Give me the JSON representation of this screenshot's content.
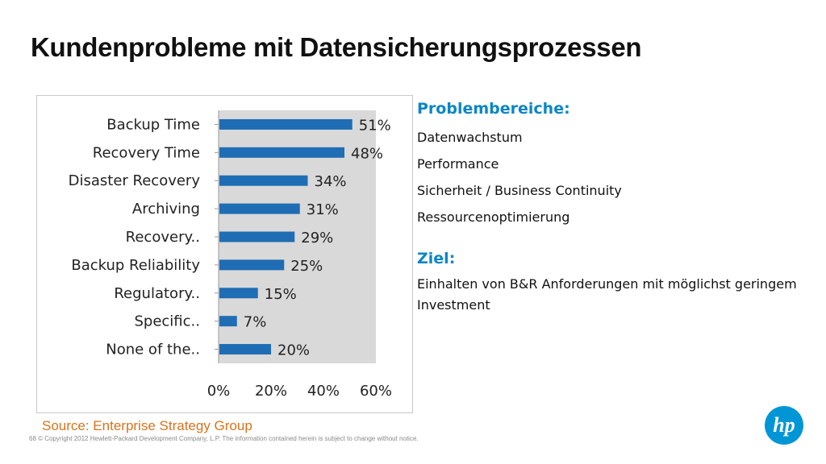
{
  "slide": {
    "title": "Kundenprobleme mit  Datensicherungsprozessen",
    "problem_heading": "Problembereiche:",
    "problems": [
      "Datenwachstum",
      "Performance",
      "Sicherheit / Business Continuity",
      "Ressourcenoptimierung"
    ],
    "goal_heading": "Ziel:",
    "goal_text": "Einhalten von B&R Anforderungen mit möglichst geringem Investment",
    "source": "Source:  Enterprise Strategy Group",
    "footer": "68    © Copyright 2012 Hewlett-Packard Development Company, L.P. The information contained herein is subject to change without notice.",
    "logo_text": "hp"
  },
  "colors": {
    "bar": "#1f6db4",
    "accent": "#0a86c7",
    "source": "#d9731a",
    "logo": "#0096d6",
    "plot_bg": "#d9d9d9"
  },
  "chart_data": {
    "type": "bar",
    "orientation": "horizontal",
    "categories": [
      "Backup Time",
      "Recovery Time",
      "Disaster Recovery",
      "Archiving",
      "Recovery..",
      "Backup Reliability",
      "Regulatory..",
      "Specific..",
      "None of the.."
    ],
    "values": [
      51,
      48,
      34,
      31,
      29,
      25,
      15,
      7,
      20
    ],
    "value_labels": [
      "51%",
      "48%",
      "34%",
      "31%",
      "29%",
      "25%",
      "15%",
      "7%",
      "20%"
    ],
    "x_ticks": [
      "0%",
      "20%",
      "40%",
      "60%"
    ],
    "xlim": [
      0,
      60
    ],
    "grid": false,
    "legend": false
  }
}
